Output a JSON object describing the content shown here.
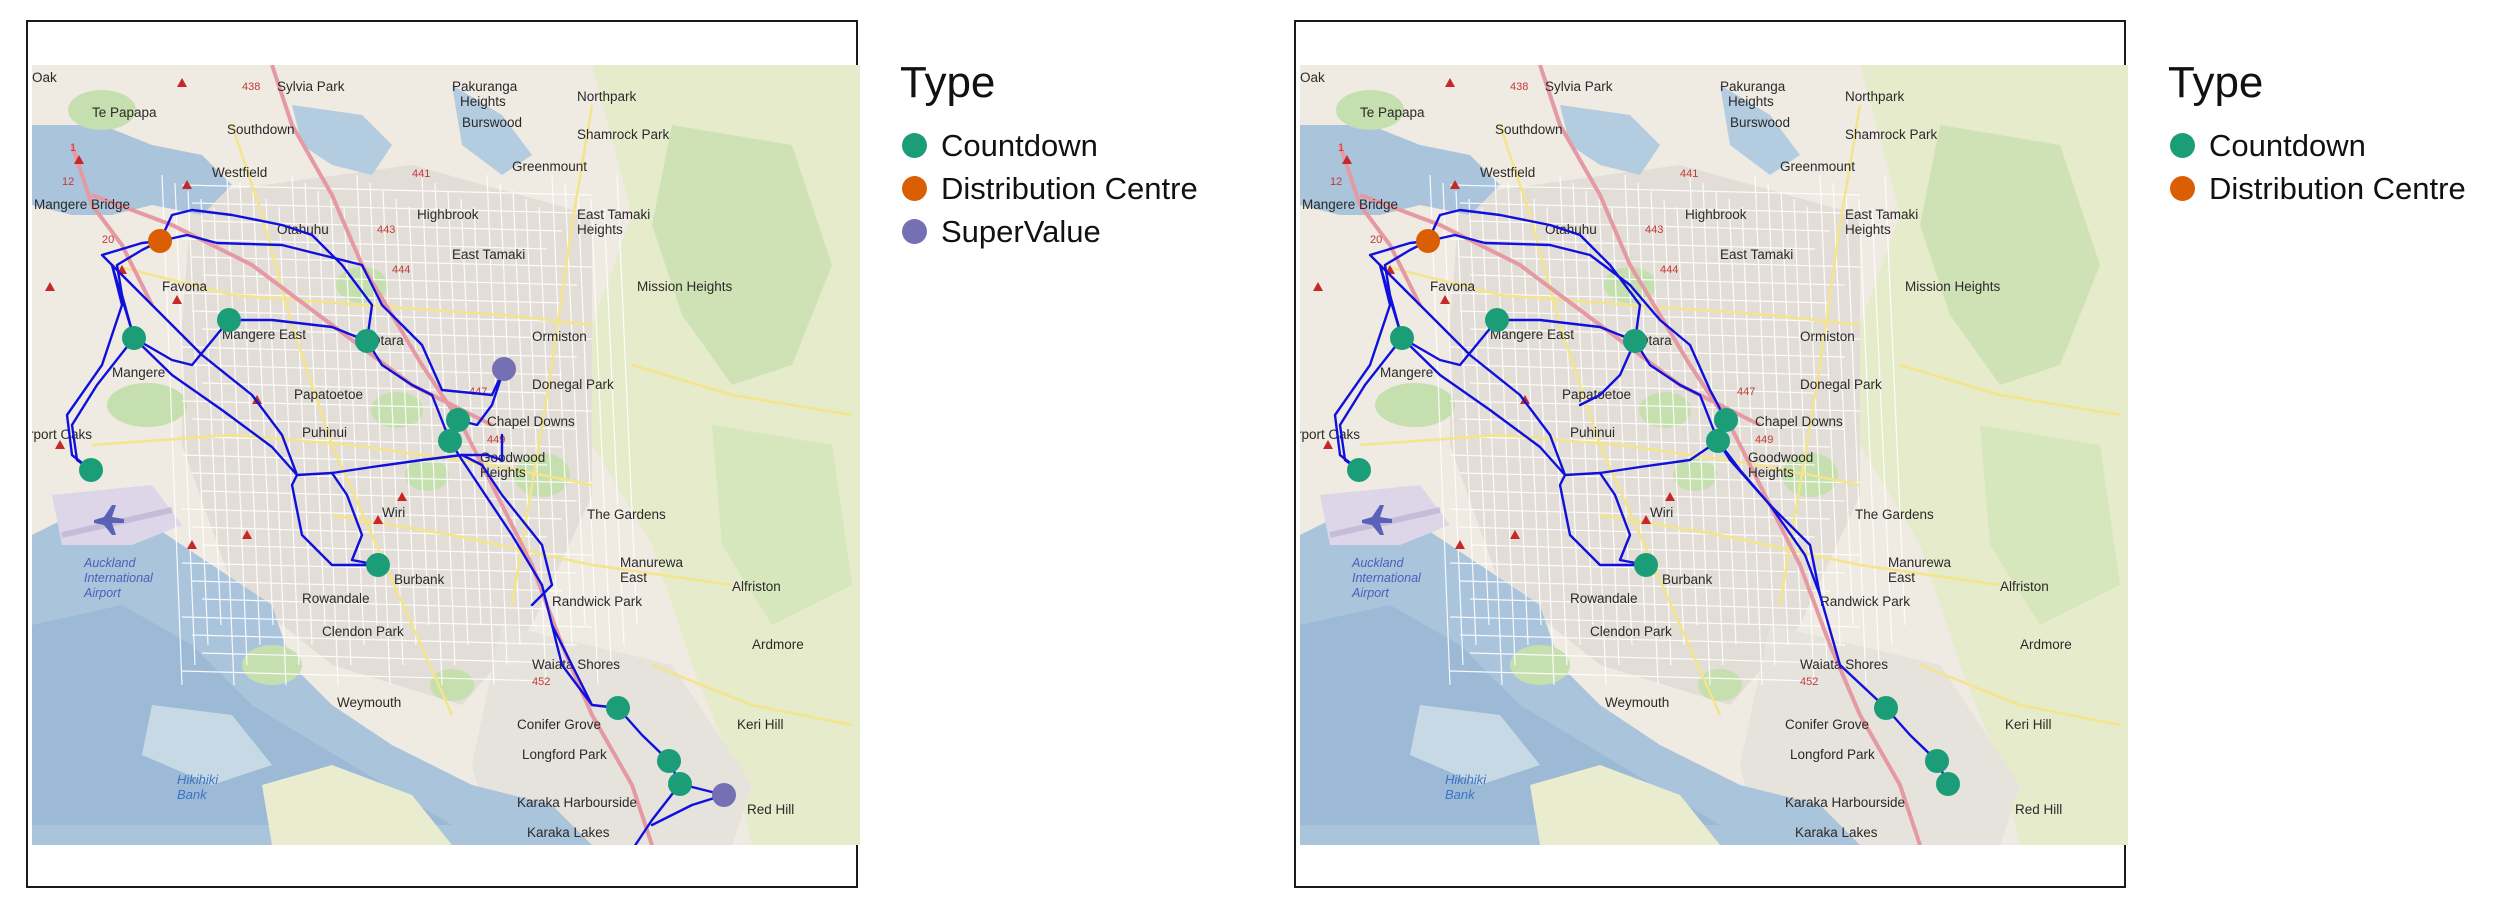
{
  "legend": {
    "title": "Type",
    "types": {
      "countdown": {
        "label": "Countdown",
        "color": "#1b9e77"
      },
      "dc": {
        "label": "Distribution Centre",
        "color": "#d95f02"
      },
      "supervalue": {
        "label": "SuperValue",
        "color": "#7570b3"
      }
    }
  },
  "route_color": "#1010dd",
  "place_labels": [
    "Sylvia Park",
    "Pakuranga Heights",
    "Te Papapa",
    "Northpark",
    "Southdown",
    "Burswood",
    "Shamrock Park",
    "Westfield",
    "Greenmount",
    "Mangere Bridge",
    "Otahuhu",
    "Highbrook",
    "East Tamaki Heights",
    "Favona",
    "East Tamaki",
    "Mangere East",
    "Otara",
    "Mission Heights",
    "Mangere",
    "Ormiston",
    "Papatoetoe",
    "Donegal Park",
    "Puhinui",
    "Chapel Downs",
    "Goodwood Heights",
    "Airport Oaks",
    "Wiri",
    "The Gardens",
    "Auckland International Airport",
    "Manurewa East",
    "Alfriston",
    "Randwick Park",
    "Rowandale",
    "Clendon Park",
    "Weymouth",
    "Waiata Shores",
    "Ardmore",
    "Conifer Grove",
    "Keri Hill",
    "Longford Park",
    "Karaka Harbourside",
    "Red Hill",
    "Hikihiki Bank",
    "Karaka Lakes",
    "Burbank",
    "Oak"
  ],
  "highway_labels": [
    "438",
    "1",
    "441",
    "443",
    "444",
    "20",
    "447",
    "449",
    "452",
    "12"
  ],
  "panels": [
    {
      "stores": [
        {
          "type": "dc",
          "x": 128,
          "y": 176
        },
        {
          "type": "countdown",
          "x": 197,
          "y": 255
        },
        {
          "type": "countdown",
          "x": 102,
          "y": 273
        },
        {
          "type": "countdown",
          "x": 335,
          "y": 276
        },
        {
          "type": "supervalue",
          "x": 472,
          "y": 304
        },
        {
          "type": "countdown",
          "x": 426,
          "y": 355
        },
        {
          "type": "countdown",
          "x": 418,
          "y": 376
        },
        {
          "type": "countdown",
          "x": 59,
          "y": 405
        },
        {
          "type": "countdown",
          "x": 346,
          "y": 500
        },
        {
          "type": "countdown",
          "x": 586,
          "y": 643
        },
        {
          "type": "countdown",
          "x": 637,
          "y": 696
        },
        {
          "type": "countdown",
          "x": 648,
          "y": 719
        },
        {
          "type": "supervalue",
          "x": 692,
          "y": 730
        }
      ],
      "routes": [
        "128,176 L155,170 L185,178 L250,180 L290,190 L330,200 L350,240 L390,280 L410,325 L460,330 L472,304",
        "128,176 L110,178 L70,190 L80,200 L102,273 L140,295 L160,300 L197,255",
        "102,273 L140,310 L190,345 L240,382 L265,410 L300,408 L320,405 L340,402 L390,395 L430,390",
        "102,273 L65,320 L40,360 L45,395 L59,405",
        "59,405 L40,390 L35,350 L70,300 L90,240 L80,200",
        "197,255 L240,255 L300,262 L335,276",
        "335,276 L350,300 L380,320 L400,330 L418,376",
        "418,376 L426,355 L445,360 L460,340 L472,304",
        "430,390 L455,390 L470,395 L470,370",
        "418,376 L430,395 L480,470 L510,520 L520,560 L530,600 L560,640 L586,643",
        "430,390 L450,400 L470,430 L510,480 L520,520 L500,540",
        "300,408 L315,430 L330,470 L320,495 L346,500",
        "346,500 L300,500 L270,470 L260,420 L265,410",
        "586,643 L610,670 L637,696 L648,719 L692,730",
        "648,719 L620,755 L600,785 L590,800",
        "692,730 L660,740 L620,760",
        "520,560 L540,600 L560,640",
        "80,200 L120,240 L170,290 L220,330 L250,370 L265,410",
        "128,176 L140,150 L160,145 L200,150 L250,160 L280,170 L310,200 L340,240 L335,276",
        "102,273 L90,230 L85,200 L110,185 L128,176"
      ]
    },
    {
      "stores": [
        {
          "type": "dc",
          "x": 128,
          "y": 176
        },
        {
          "type": "countdown",
          "x": 197,
          "y": 255
        },
        {
          "type": "countdown",
          "x": 102,
          "y": 273
        },
        {
          "type": "countdown",
          "x": 335,
          "y": 276
        },
        {
          "type": "countdown",
          "x": 426,
          "y": 355
        },
        {
          "type": "countdown",
          "x": 418,
          "y": 376
        },
        {
          "type": "countdown",
          "x": 59,
          "y": 405
        },
        {
          "type": "countdown",
          "x": 346,
          "y": 500
        },
        {
          "type": "countdown",
          "x": 586,
          "y": 643
        },
        {
          "type": "countdown",
          "x": 637,
          "y": 696
        },
        {
          "type": "countdown",
          "x": 648,
          "y": 719
        }
      ],
      "routes": [
        "128,176 L155,170 L185,178 L250,180 L290,190 L330,220 L360,255 L390,280 L410,325 L426,355",
        "128,176 L110,178 L70,190 L80,200 L102,273 L140,295 L160,300 L197,255",
        "102,273 L140,310 L190,345 L240,382 L265,410 L300,408 L320,405 L340,402 L390,395 L418,376",
        "102,273 L65,320 L40,360 L45,395 L59,405",
        "59,405 L40,390 L35,350 L70,300 L90,240 L80,200",
        "197,255 L240,255 L300,262 L335,276",
        "335,276 L350,300 L380,320 L400,330 L418,376",
        "418,376 L430,395 L470,440 L505,490 L520,530 L540,600 L586,643",
        "418,376 L440,405 L470,440 L510,480 L520,530",
        "300,408 L315,430 L330,470 L320,495 L346,500",
        "346,500 L300,500 L270,470 L260,420 L265,410",
        "586,643 L610,670 L637,696 L648,719",
        "80,200 L120,240 L170,290 L220,330 L250,370 L265,410",
        "128,176 L140,150 L160,145 L200,150 L250,160 L280,170 L310,200 L340,240 L335,276",
        "102,273 L90,230 L85,200 L110,185 L128,176",
        "335,276 L320,310 L300,330 L280,340"
      ]
    }
  ]
}
